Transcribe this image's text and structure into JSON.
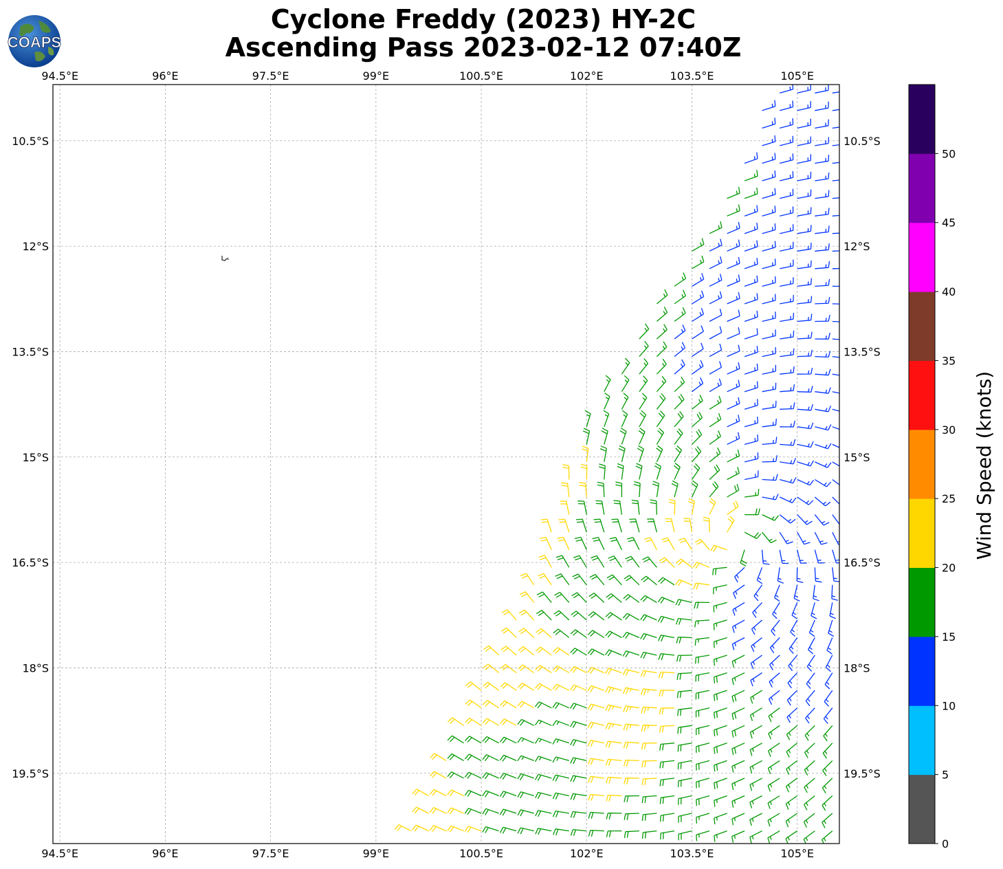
{
  "header": {
    "title_line1": "Cyclone Freddy (2023) HY-2C",
    "title_line2": "Ascending Pass 2023-02-12 07:40Z",
    "logo_text": "COAPS"
  },
  "chart_data": {
    "type": "scatter",
    "plot_kind": "wind-barb map",
    "x_axis": {
      "range": [
        94.4,
        105.6
      ],
      "ticks": [
        94.5,
        96,
        97.5,
        99,
        100.5,
        102,
        103.5,
        105
      ],
      "tick_labels": [
        "94.5°E",
        "96°E",
        "97.5°E",
        "99°E",
        "100.5°E",
        "102°E",
        "103.5°E",
        "105°E"
      ]
    },
    "y_axis": {
      "range": [
        -20.5,
        -9.7
      ],
      "ticks": [
        -10.5,
        -12,
        -13.5,
        -15,
        -16.5,
        -18,
        -19.5
      ],
      "tick_labels": [
        "10.5°S",
        "12°S",
        "13.5°S",
        "15°S",
        "16.5°S",
        "18°S",
        "19.5°S"
      ]
    },
    "grid": true,
    "swath": {
      "description": "scatterometer swath: wind barbs drawn only inside this lon/lat polygon",
      "polygon": [
        [
          104.6,
          -9.7
        ],
        [
          105.6,
          -9.7
        ],
        [
          105.6,
          -20.5
        ],
        [
          99.4,
          -20.5
        ],
        [
          101.3,
          -16.5
        ],
        [
          102.1,
          -14.2
        ],
        [
          103.2,
          -12.5
        ],
        [
          104.0,
          -11.2
        ]
      ]
    },
    "cyclone_center": [
      104.1,
      -16.2
    ],
    "wind_samples": [
      {
        "lon": 104.8,
        "lat": -10.3,
        "speed_kt": 13
      },
      {
        "lon": 105.2,
        "lat": -10.8,
        "speed_kt": 14
      },
      {
        "lon": 103.8,
        "lat": -11.3,
        "speed_kt": 16
      },
      {
        "lon": 104.6,
        "lat": -12.0,
        "speed_kt": 13
      },
      {
        "lon": 105.3,
        "lat": -12.6,
        "speed_kt": 14
      },
      {
        "lon": 102.8,
        "lat": -12.9,
        "speed_kt": 17
      },
      {
        "lon": 103.7,
        "lat": -13.4,
        "speed_kt": 12
      },
      {
        "lon": 104.5,
        "lat": -14.1,
        "speed_kt": 13
      },
      {
        "lon": 102.3,
        "lat": -14.2,
        "speed_kt": 17
      },
      {
        "lon": 103.1,
        "lat": -14.7,
        "speed_kt": 18
      },
      {
        "lon": 104.9,
        "lat": -15.1,
        "speed_kt": 13
      },
      {
        "lon": 101.7,
        "lat": -15.4,
        "speed_kt": 22
      },
      {
        "lon": 102.4,
        "lat": -15.8,
        "speed_kt": 18
      },
      {
        "lon": 103.6,
        "lat": -16.3,
        "speed_kt": 22
      },
      {
        "lon": 101.2,
        "lat": -16.5,
        "speed_kt": 22
      },
      {
        "lon": 104.6,
        "lat": -16.9,
        "speed_kt": 13
      },
      {
        "lon": 102.0,
        "lat": -17.0,
        "speed_kt": 18
      },
      {
        "lon": 103.0,
        "lat": -17.3,
        "speed_kt": 18
      },
      {
        "lon": 100.9,
        "lat": -17.7,
        "speed_kt": 22
      },
      {
        "lon": 104.9,
        "lat": -17.9,
        "speed_kt": 13
      },
      {
        "lon": 101.0,
        "lat": -18.4,
        "speed_kt": 22
      },
      {
        "lon": 102.8,
        "lat": -18.6,
        "speed_kt": 23
      },
      {
        "lon": 104.0,
        "lat": -18.5,
        "speed_kt": 18
      },
      {
        "lon": 101.6,
        "lat": -19.1,
        "speed_kt": 17
      },
      {
        "lon": 102.5,
        "lat": -19.4,
        "speed_kt": 22
      },
      {
        "lon": 100.6,
        "lat": -19.6,
        "speed_kt": 18
      },
      {
        "lon": 103.6,
        "lat": -19.5,
        "speed_kt": 18
      },
      {
        "lon": 104.8,
        "lat": -19.5,
        "speed_kt": 17
      },
      {
        "lon": 100.0,
        "lat": -20.0,
        "speed_kt": 22
      },
      {
        "lon": 101.4,
        "lat": -20.1,
        "speed_kt": 18
      },
      {
        "lon": 102.7,
        "lat": -20.2,
        "speed_kt": 18
      },
      {
        "lon": 104.2,
        "lat": -20.2,
        "speed_kt": 17
      },
      {
        "lon": 99.6,
        "lat": -20.4,
        "speed_kt": 22
      }
    ],
    "colorbar": {
      "label": "Wind Speed (knots)",
      "tick_labels": [
        "0",
        "5",
        "10",
        "15",
        "20",
        "25",
        "30",
        "35",
        "40",
        "45",
        "50"
      ],
      "bins": [
        {
          "from": 0,
          "to": 5,
          "color": "#555555"
        },
        {
          "from": 5,
          "to": 10,
          "color": "#00bfff"
        },
        {
          "from": 10,
          "to": 15,
          "color": "#0033ff"
        },
        {
          "from": 15,
          "to": 20,
          "color": "#009900"
        },
        {
          "from": 20,
          "to": 25,
          "color": "#ffd700"
        },
        {
          "from": 25,
          "to": 30,
          "color": "#ff8c00"
        },
        {
          "from": 30,
          "to": 35,
          "color": "#ff1010"
        },
        {
          "from": 35,
          "to": 40,
          "color": "#7f3b2a"
        },
        {
          "from": 40,
          "to": 45,
          "color": "#ff00ff"
        },
        {
          "from": 45,
          "to": 50,
          "color": "#8000b0"
        },
        {
          "from": 50,
          "to": 55,
          "color": "#2a005e"
        }
      ]
    }
  }
}
